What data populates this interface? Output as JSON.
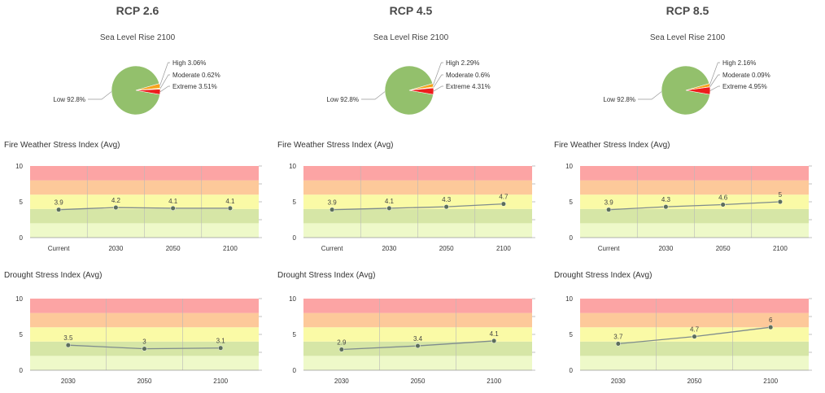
{
  "colors": {
    "pie_low": "#93c06c",
    "pie_high": "#f7a21b",
    "pie_moderate": "#f6e84a",
    "pie_extreme": "#ee1d1d",
    "band_extreme": "#fca4a4",
    "band_high": "#fdc99a",
    "band_moderate": "#fafaa6",
    "band_low": "#d6e6a6",
    "band_verylow": "#eef9c9",
    "line": "#7f8c8d",
    "marker": "#5c6e5c"
  },
  "scenarios": [
    {
      "title": "RCP 2.6",
      "sea_level_title": "Sea Level Rise 2100",
      "fire_title": "Fire Weather Stress Index (Avg)",
      "drought_title": "Drought Stress Index (Avg)"
    },
    {
      "title": "RCP 4.5",
      "sea_level_title": "Sea Level Rise 2100",
      "fire_title": "Fire Weather Stress Index (Avg)",
      "drought_title": "Drought Stress Index (Avg)"
    },
    {
      "title": "RCP 8.5",
      "sea_level_title": "Sea Level Rise 2100",
      "fire_title": "Fire Weather Stress Index (Avg)",
      "drought_title": "Drought Stress Index (Avg)"
    }
  ],
  "chart_data": [
    {
      "type": "pie",
      "scenario": "RCP 2.6",
      "title": "Sea Level Rise 2100",
      "slices": [
        {
          "name": "Low",
          "value": 92.8,
          "label": "Low 92.8%",
          "color_key": "pie_low"
        },
        {
          "name": "High",
          "value": 3.06,
          "label": "High 3.06%",
          "color_key": "pie_high"
        },
        {
          "name": "Moderate",
          "value": 0.62,
          "label": "Moderate 0.62%",
          "color_key": "pie_moderate"
        },
        {
          "name": "Extreme",
          "value": 3.51,
          "label": "Extreme 3.51%",
          "color_key": "pie_extreme"
        }
      ]
    },
    {
      "type": "pie",
      "scenario": "RCP 4.5",
      "title": "Sea Level Rise 2100",
      "slices": [
        {
          "name": "Low",
          "value": 92.8,
          "label": "Low 92.8%",
          "color_key": "pie_low"
        },
        {
          "name": "High",
          "value": 2.29,
          "label": "High 2.29%",
          "color_key": "pie_high"
        },
        {
          "name": "Moderate",
          "value": 0.6,
          "label": "Moderate 0.6%",
          "color_key": "pie_moderate"
        },
        {
          "name": "Extreme",
          "value": 4.31,
          "label": "Extreme 4.31%",
          "color_key": "pie_extreme"
        }
      ]
    },
    {
      "type": "pie",
      "scenario": "RCP 8.5",
      "title": "Sea Level Rise 2100",
      "slices": [
        {
          "name": "Low",
          "value": 92.8,
          "label": "Low 92.8%",
          "color_key": "pie_low"
        },
        {
          "name": "High",
          "value": 2.16,
          "label": "High 2.16%",
          "color_key": "pie_high"
        },
        {
          "name": "Moderate",
          "value": 0.09,
          "label": "Moderate 0.09%",
          "color_key": "pie_moderate"
        },
        {
          "name": "Extreme",
          "value": 4.95,
          "label": "Extreme 4.95%",
          "color_key": "pie_extreme"
        }
      ]
    },
    {
      "type": "line",
      "scenario": "RCP 2.6",
      "title": "Fire Weather Stress Index (Avg)",
      "categories": [
        "Current",
        "2030",
        "2050",
        "2100"
      ],
      "values": [
        3.9,
        4.2,
        4.1,
        4.1
      ],
      "ylim": [
        0,
        10
      ],
      "yticks": [
        0,
        5,
        10
      ]
    },
    {
      "type": "line",
      "scenario": "RCP 4.5",
      "title": "Fire Weather Stress Index (Avg)",
      "categories": [
        "Current",
        "2030",
        "2050",
        "2100"
      ],
      "values": [
        3.9,
        4.1,
        4.3,
        4.7
      ],
      "ylim": [
        0,
        10
      ],
      "yticks": [
        0,
        5,
        10
      ]
    },
    {
      "type": "line",
      "scenario": "RCP 8.5",
      "title": "Fire Weather Stress Index (Avg)",
      "categories": [
        "Current",
        "2030",
        "2050",
        "2100"
      ],
      "values": [
        3.9,
        4.3,
        4.6,
        5
      ],
      "ylim": [
        0,
        10
      ],
      "yticks": [
        0,
        5,
        10
      ]
    },
    {
      "type": "line",
      "scenario": "RCP 2.6",
      "title": "Drought Stress Index (Avg)",
      "categories": [
        "2030",
        "2050",
        "2100"
      ],
      "values": [
        3.5,
        3,
        3.1
      ],
      "ylim": [
        0,
        10
      ],
      "yticks": [
        0,
        5,
        10
      ]
    },
    {
      "type": "line",
      "scenario": "RCP 4.5",
      "title": "Drought Stress Index (Avg)",
      "categories": [
        "2030",
        "2050",
        "2100"
      ],
      "values": [
        2.9,
        3.4,
        4.1
      ],
      "ylim": [
        0,
        10
      ],
      "yticks": [
        0,
        5,
        10
      ]
    },
    {
      "type": "line",
      "scenario": "RCP 8.5",
      "title": "Drought Stress Index (Avg)",
      "categories": [
        "2030",
        "2050",
        "2100"
      ],
      "values": [
        3.7,
        4.7,
        6
      ],
      "ylim": [
        0,
        10
      ],
      "yticks": [
        0,
        5,
        10
      ]
    }
  ],
  "bands": [
    {
      "from": 0,
      "to": 2,
      "color_key": "band_verylow"
    },
    {
      "from": 2,
      "to": 4,
      "color_key": "band_low"
    },
    {
      "from": 4,
      "to": 6,
      "color_key": "band_moderate"
    },
    {
      "from": 6,
      "to": 8,
      "color_key": "band_high"
    },
    {
      "from": 8,
      "to": 10,
      "color_key": "band_extreme"
    }
  ]
}
